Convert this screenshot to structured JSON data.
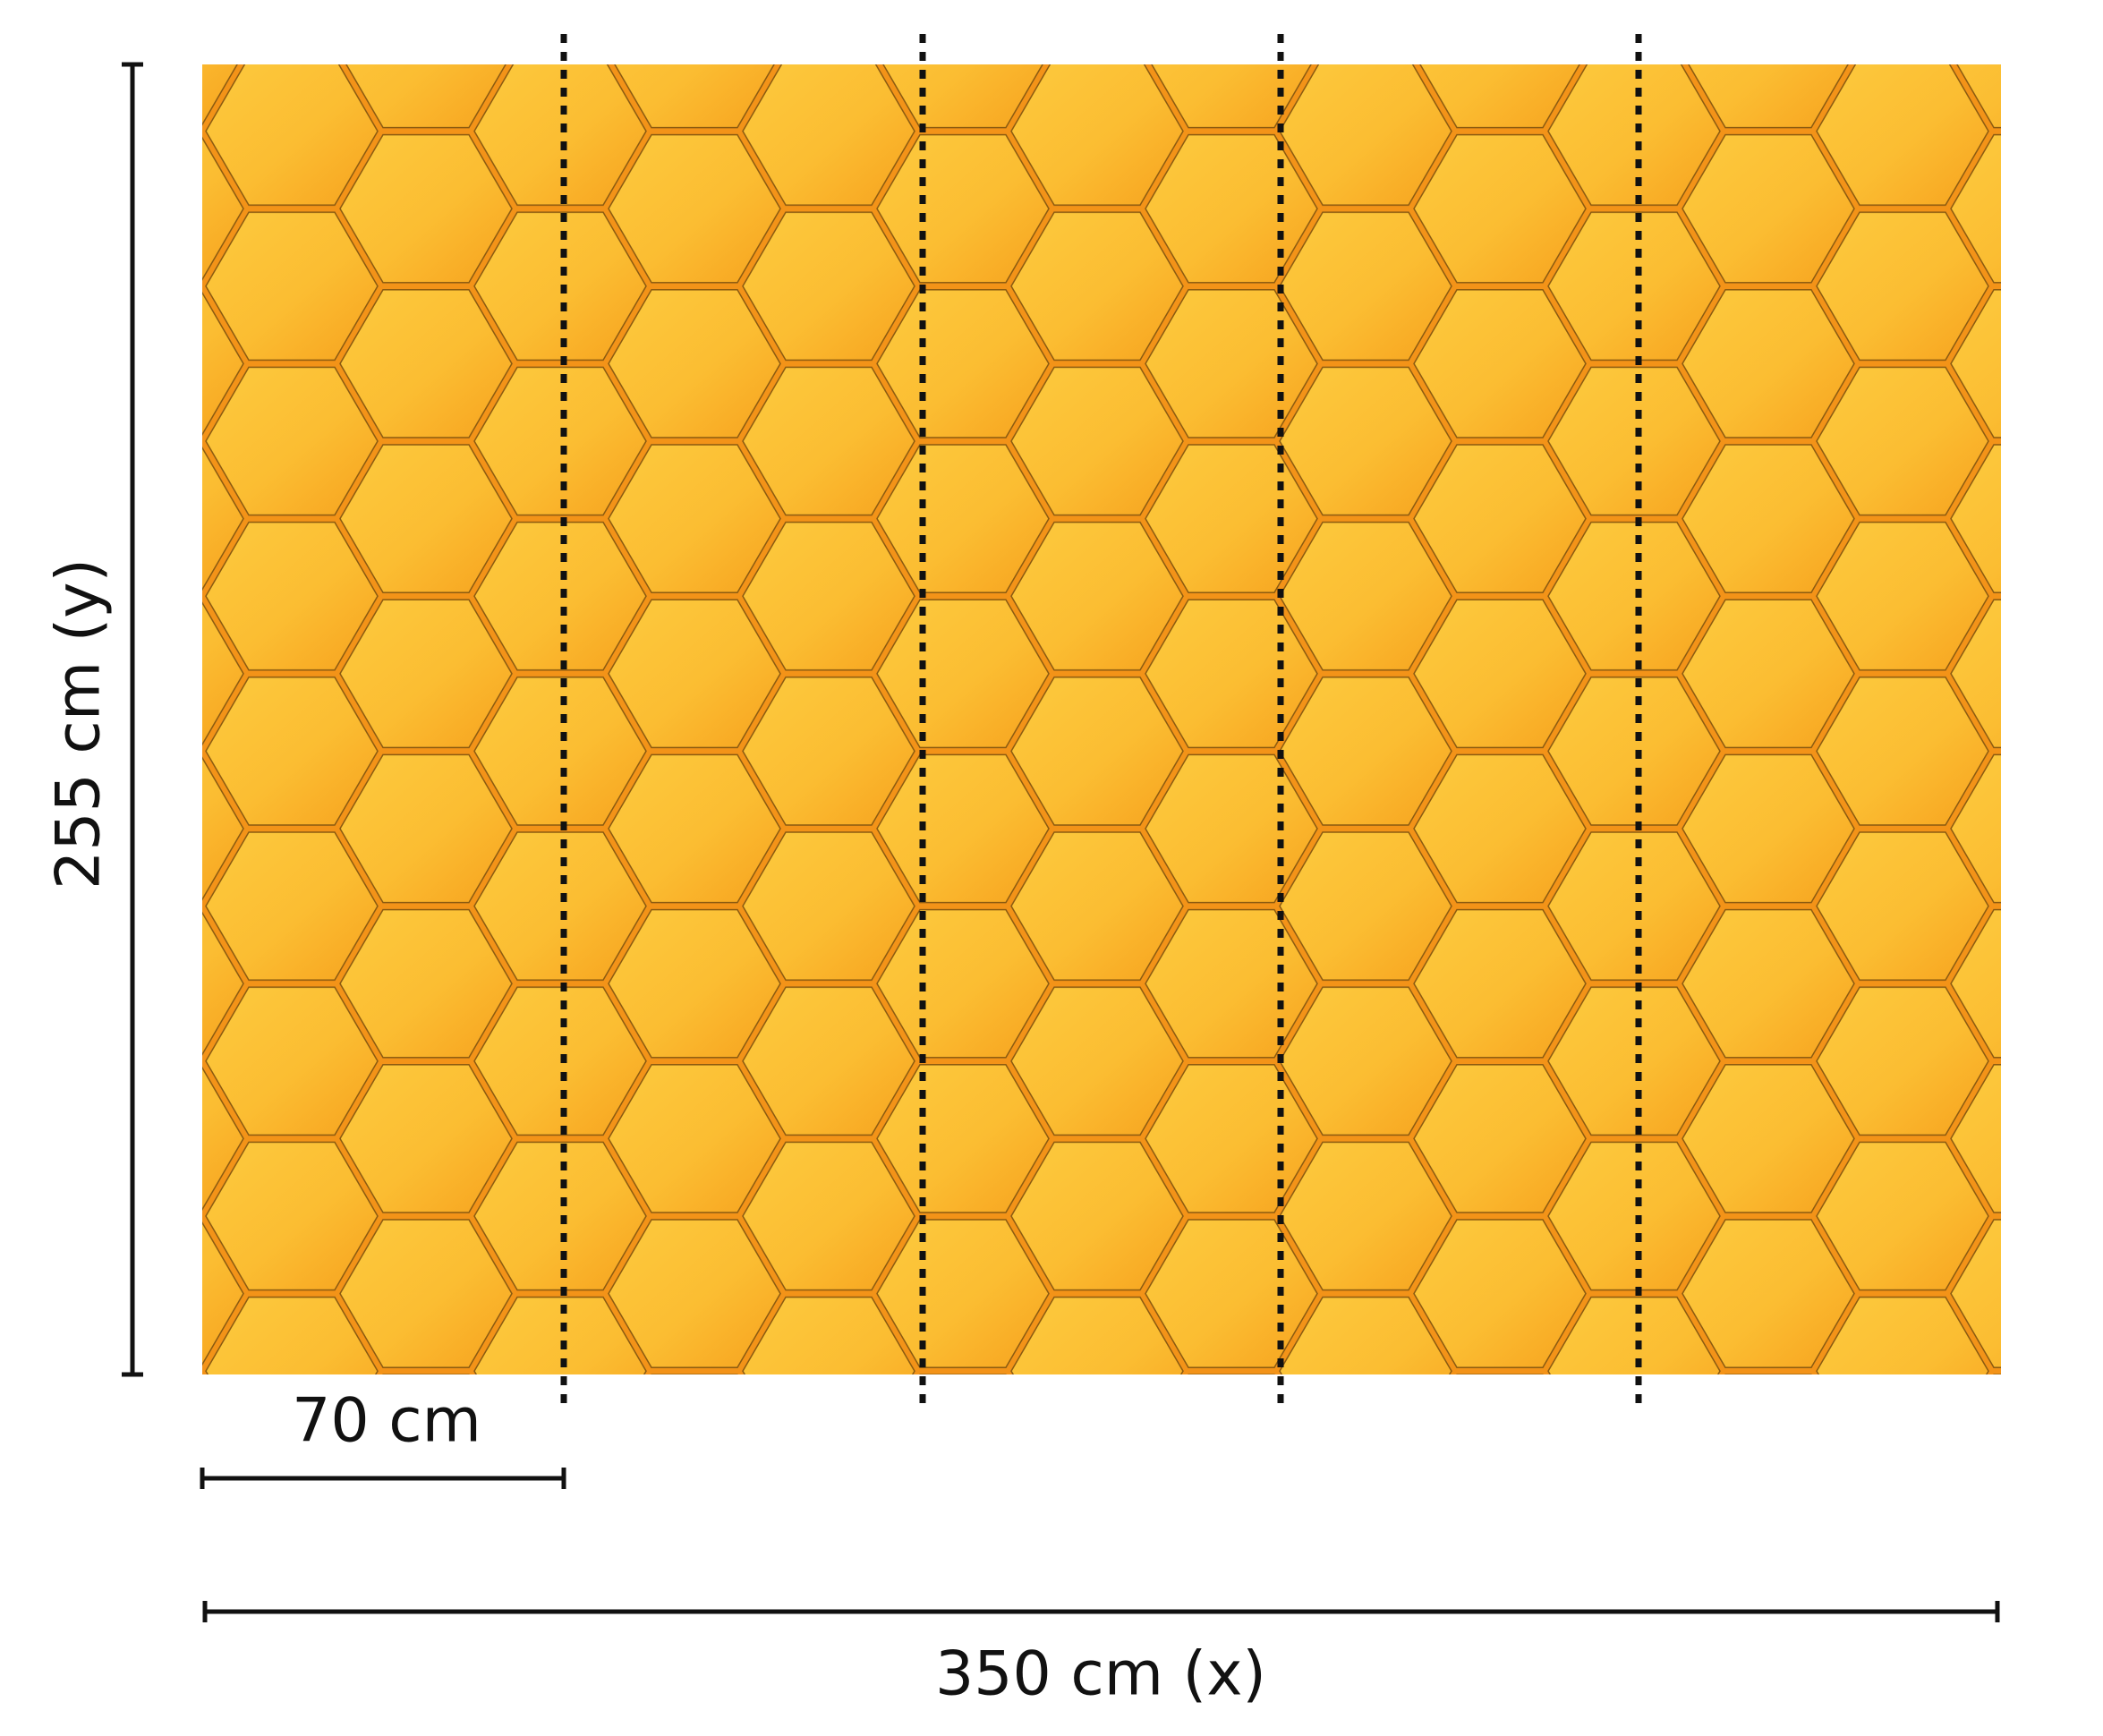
{
  "dimensions": {
    "height_label": "255 cm (y)",
    "panel_width_label": "70 cm",
    "width_label": "350 cm (x)"
  }
}
